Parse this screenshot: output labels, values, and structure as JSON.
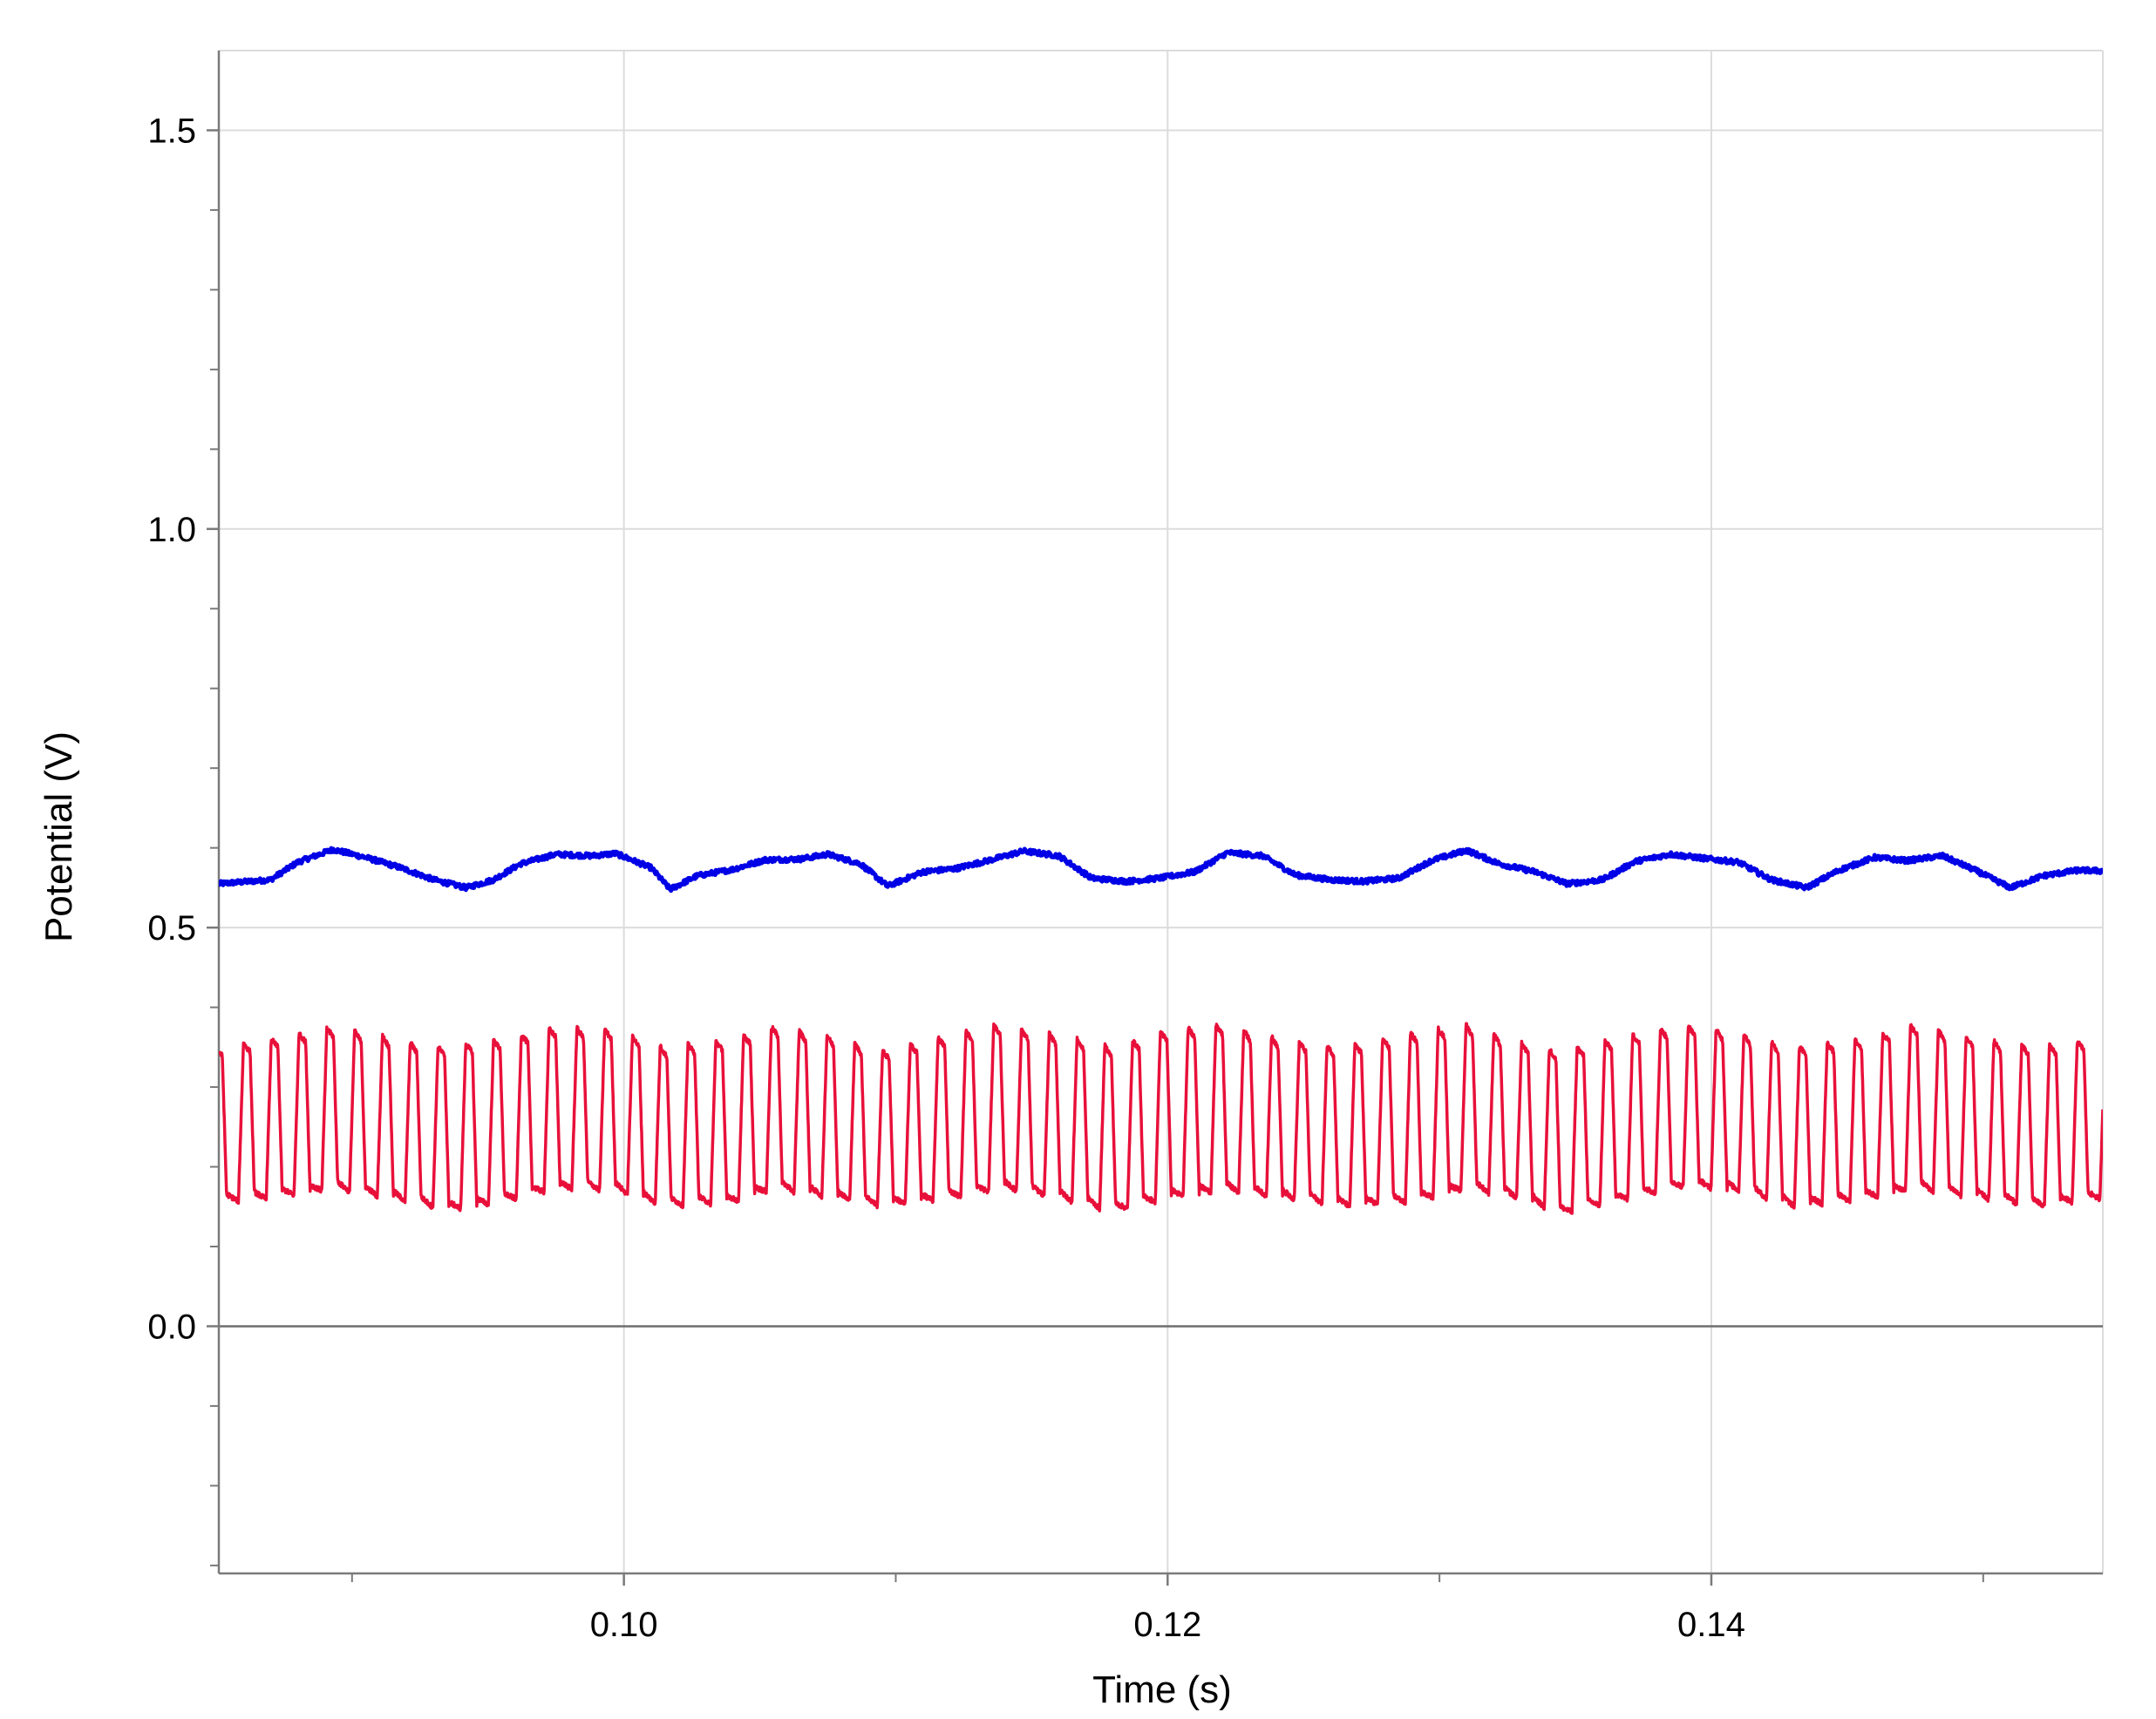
{
  "chart_data": {
    "type": "line",
    "title": "",
    "xlabel": "Time (s)",
    "ylabel": "Potential (V)",
    "xlim": [
      0.0851,
      0.1544
    ],
    "ylim": [
      -0.31,
      1.6
    ],
    "x_ticks": [
      0.1,
      0.12,
      0.14
    ],
    "x_tick_labels": [
      "0.10",
      "0.12",
      "0.14"
    ],
    "x_minor_ticks": [
      0.09,
      0.11,
      0.13,
      0.15
    ],
    "y_ticks": [
      0.0,
      0.5,
      1.0,
      1.5
    ],
    "y_tick_labels": [
      "0.0",
      "0.5",
      "1.0",
      "1.5"
    ],
    "y_minor_ticks": [
      -0.3,
      -0.2,
      -0.1,
      0.1,
      0.2,
      0.3,
      0.4,
      0.6,
      0.7,
      0.8,
      0.9,
      1.1,
      1.2,
      1.3,
      1.4
    ],
    "grid": true,
    "zero_line": true,
    "series": [
      {
        "color": "#0000e6",
        "kind": "slow",
        "points": [
          [
            0.0851,
            0.555
          ],
          [
            0.087,
            0.56
          ],
          [
            0.088,
            0.582
          ],
          [
            0.0893,
            0.598
          ],
          [
            0.0905,
            0.588
          ],
          [
            0.0918,
            0.575
          ],
          [
            0.093,
            0.56
          ],
          [
            0.0942,
            0.55
          ],
          [
            0.0952,
            0.56
          ],
          [
            0.0962,
            0.58
          ],
          [
            0.0975,
            0.592
          ],
          [
            0.0988,
            0.59
          ],
          [
            0.0997,
            0.593
          ],
          [
            0.101,
            0.575
          ],
          [
            0.1017,
            0.548
          ],
          [
            0.1027,
            0.565
          ],
          [
            0.104,
            0.573
          ],
          [
            0.1052,
            0.585
          ],
          [
            0.1065,
            0.586
          ],
          [
            0.1075,
            0.592
          ],
          [
            0.1087,
            0.58
          ],
          [
            0.1097,
            0.552
          ],
          [
            0.111,
            0.57
          ],
          [
            0.1122,
            0.574
          ],
          [
            0.1135,
            0.585
          ],
          [
            0.1147,
            0.596
          ],
          [
            0.116,
            0.59
          ],
          [
            0.1172,
            0.562
          ],
          [
            0.1185,
            0.558
          ],
          [
            0.1197,
            0.562
          ],
          [
            0.121,
            0.57
          ],
          [
            0.1222,
            0.594
          ],
          [
            0.1235,
            0.59
          ],
          [
            0.1247,
            0.566
          ],
          [
            0.126,
            0.56
          ],
          [
            0.1272,
            0.558
          ],
          [
            0.1285,
            0.562
          ],
          [
            0.1297,
            0.584
          ],
          [
            0.131,
            0.597
          ],
          [
            0.1322,
            0.58
          ],
          [
            0.1335,
            0.57
          ],
          [
            0.1347,
            0.555
          ],
          [
            0.136,
            0.56
          ],
          [
            0.1372,
            0.583
          ],
          [
            0.1385,
            0.592
          ],
          [
            0.1397,
            0.587
          ],
          [
            0.141,
            0.582
          ],
          [
            0.1422,
            0.56
          ],
          [
            0.1435,
            0.55
          ],
          [
            0.1447,
            0.572
          ],
          [
            0.146,
            0.588
          ],
          [
            0.1472,
            0.584
          ],
          [
            0.1485,
            0.59
          ],
          [
            0.1497,
            0.572
          ],
          [
            0.151,
            0.55
          ],
          [
            0.1522,
            0.565
          ],
          [
            0.1535,
            0.572
          ],
          [
            0.1544,
            0.571
          ]
        ]
      },
      {
        "color": "#e8103a",
        "kind": "oscillation",
        "period": 0.001022,
        "phase_start": 0.0848,
        "high": 0.365,
        "low": 0.165,
        "high_env": [
          [
            0.0851,
            0.35
          ],
          [
            0.087,
            0.36
          ],
          [
            0.0893,
            0.375
          ],
          [
            0.091,
            0.365
          ],
          [
            0.093,
            0.35
          ],
          [
            0.0955,
            0.36
          ],
          [
            0.0975,
            0.375
          ],
          [
            0.0997,
            0.372
          ],
          [
            0.1015,
            0.35
          ],
          [
            0.104,
            0.36
          ],
          [
            0.1055,
            0.376
          ],
          [
            0.1075,
            0.365
          ],
          [
            0.1095,
            0.345
          ],
          [
            0.112,
            0.365
          ],
          [
            0.1137,
            0.378
          ],
          [
            0.116,
            0.365
          ],
          [
            0.118,
            0.35
          ],
          [
            0.12,
            0.372
          ],
          [
            0.122,
            0.378
          ],
          [
            0.1245,
            0.358
          ],
          [
            0.1265,
            0.35
          ],
          [
            0.129,
            0.368
          ],
          [
            0.131,
            0.378
          ],
          [
            0.133,
            0.355
          ],
          [
            0.1345,
            0.345
          ],
          [
            0.137,
            0.365
          ],
          [
            0.139,
            0.378
          ],
          [
            0.141,
            0.368
          ],
          [
            0.143,
            0.35
          ],
          [
            0.1455,
            0.36
          ],
          [
            0.1475,
            0.378
          ],
          [
            0.1495,
            0.362
          ],
          [
            0.152,
            0.35
          ],
          [
            0.1544,
            0.362
          ]
        ],
        "low_env": [
          [
            0.0851,
            0.155
          ],
          [
            0.087,
            0.16
          ],
          [
            0.0893,
            0.172
          ],
          [
            0.0915,
            0.16
          ],
          [
            0.0935,
            0.145
          ],
          [
            0.0955,
            0.155
          ],
          [
            0.0975,
            0.172
          ],
          [
            0.0997,
            0.17
          ],
          [
            0.1015,
            0.15
          ],
          [
            0.104,
            0.155
          ],
          [
            0.1055,
            0.172
          ],
          [
            0.1075,
            0.162
          ],
          [
            0.1095,
            0.15
          ],
          [
            0.112,
            0.16
          ],
          [
            0.114,
            0.172
          ],
          [
            0.116,
            0.16
          ],
          [
            0.118,
            0.143
          ],
          [
            0.12,
            0.16
          ],
          [
            0.122,
            0.17
          ],
          [
            0.1245,
            0.16
          ],
          [
            0.1265,
            0.15
          ],
          [
            0.129,
            0.155
          ],
          [
            0.131,
            0.172
          ],
          [
            0.133,
            0.16
          ],
          [
            0.1345,
            0.14
          ],
          [
            0.137,
            0.16
          ],
          [
            0.139,
            0.175
          ],
          [
            0.141,
            0.17
          ],
          [
            0.143,
            0.15
          ],
          [
            0.1455,
            0.158
          ],
          [
            0.1475,
            0.172
          ],
          [
            0.1495,
            0.162
          ],
          [
            0.152,
            0.15
          ],
          [
            0.1544,
            0.16
          ]
        ]
      }
    ],
    "colors": {
      "grid": "#dcdcdc",
      "axis": "#7a7a7a",
      "zero_line": "#6e6e6e"
    }
  }
}
